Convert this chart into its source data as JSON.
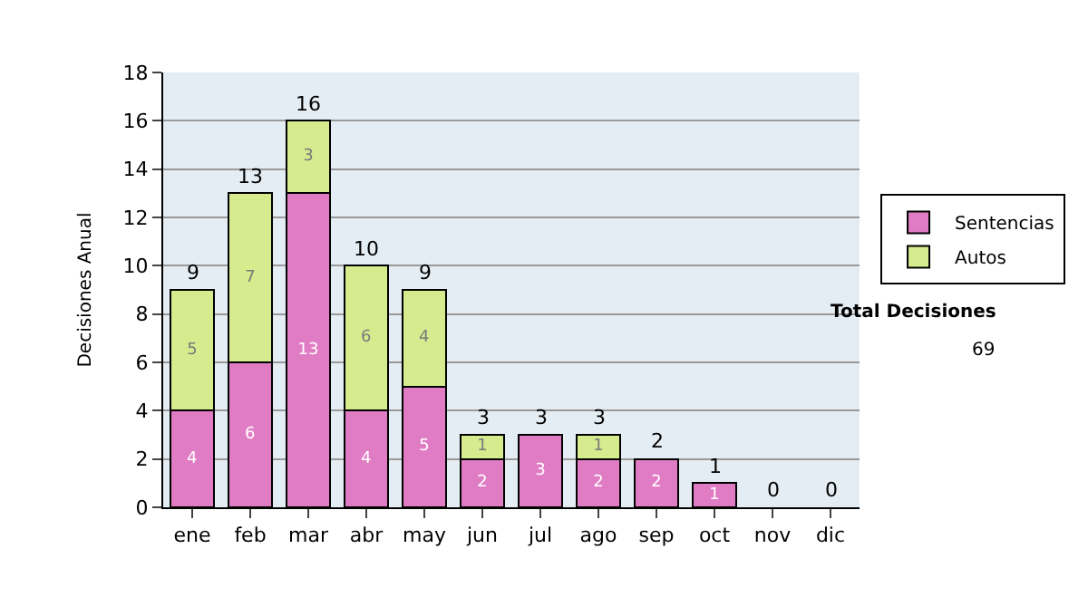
{
  "chart_data": {
    "type": "bar",
    "stacked": true,
    "ylabel": "Decisiones Anual",
    "categories": [
      "ene",
      "feb",
      "mar",
      "abr",
      "may",
      "jun",
      "jul",
      "ago",
      "sep",
      "oct",
      "nov",
      "dic"
    ],
    "series": [
      {
        "name": "Sentencias",
        "color": "#e07cc4",
        "values": [
          4,
          6,
          13,
          4,
          5,
          2,
          3,
          2,
          2,
          1,
          0,
          0
        ],
        "value_labels": [
          "4",
          "6",
          "13",
          "4",
          "5",
          "2",
          "3",
          "2",
          "2",
          "1",
          null,
          null
        ]
      },
      {
        "name": "Autos",
        "color": "#d6eb8e",
        "values": [
          5,
          7,
          3,
          6,
          4,
          1,
          0,
          1,
          0,
          0,
          0,
          0
        ],
        "value_labels": [
          "5",
          "7",
          "3",
          "6",
          "4",
          "1",
          null,
          "1",
          null,
          null,
          null,
          null
        ]
      }
    ],
    "totals": [
      "9",
      "13",
      "16",
      "10",
      "9",
      "3",
      "3",
      "3",
      "2",
      "1",
      "0",
      "0"
    ],
    "ylim": [
      0,
      18
    ],
    "yticks": [
      0,
      2,
      4,
      6,
      8,
      10,
      12,
      14,
      16,
      18
    ],
    "grid": "y",
    "legend": "right",
    "annotations": [
      "Total Decisiones",
      "69"
    ]
  }
}
